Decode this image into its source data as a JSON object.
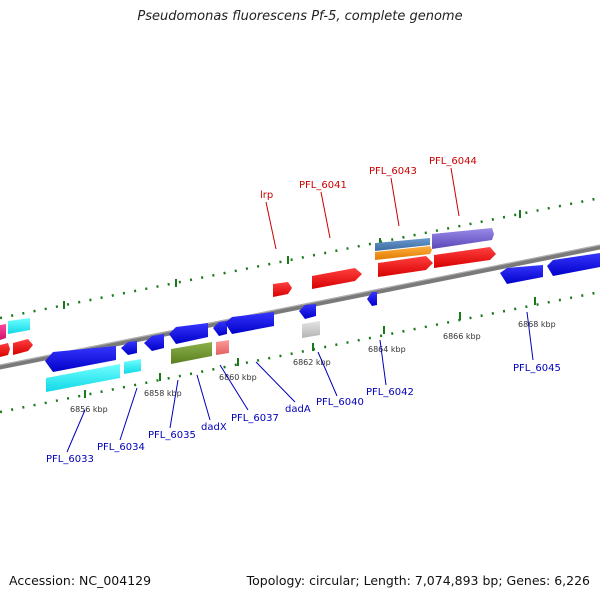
{
  "title": "Pseudomonas fluorescens Pf-5, complete genome",
  "footer": {
    "accession": "Accession: NC_004129",
    "summary": "Topology: circular; Length: 7,074,893 bp; Genes: 6,226"
  },
  "colors": {
    "forward_label": "#cc0000",
    "reverse_label": "#0000bb",
    "tick": "#1a7a1a",
    "backbone": "#808080"
  },
  "scale_labels": [
    "6856 kbp",
    "6858 kbp",
    "6860 kbp",
    "6862 kbp",
    "6864 kbp",
    "6866 kbp",
    "6868 kbp"
  ],
  "forward_genes": [
    "lrp",
    "PFL_6041",
    "PFL_6043",
    "PFL_6044"
  ],
  "reverse_genes": [
    "PFL_6033",
    "PFL_6034",
    "PFL_6035",
    "dadX",
    "PFL_6037",
    "dadA",
    "PFL_6040",
    "PFL_6042",
    "PFL_6045"
  ]
}
